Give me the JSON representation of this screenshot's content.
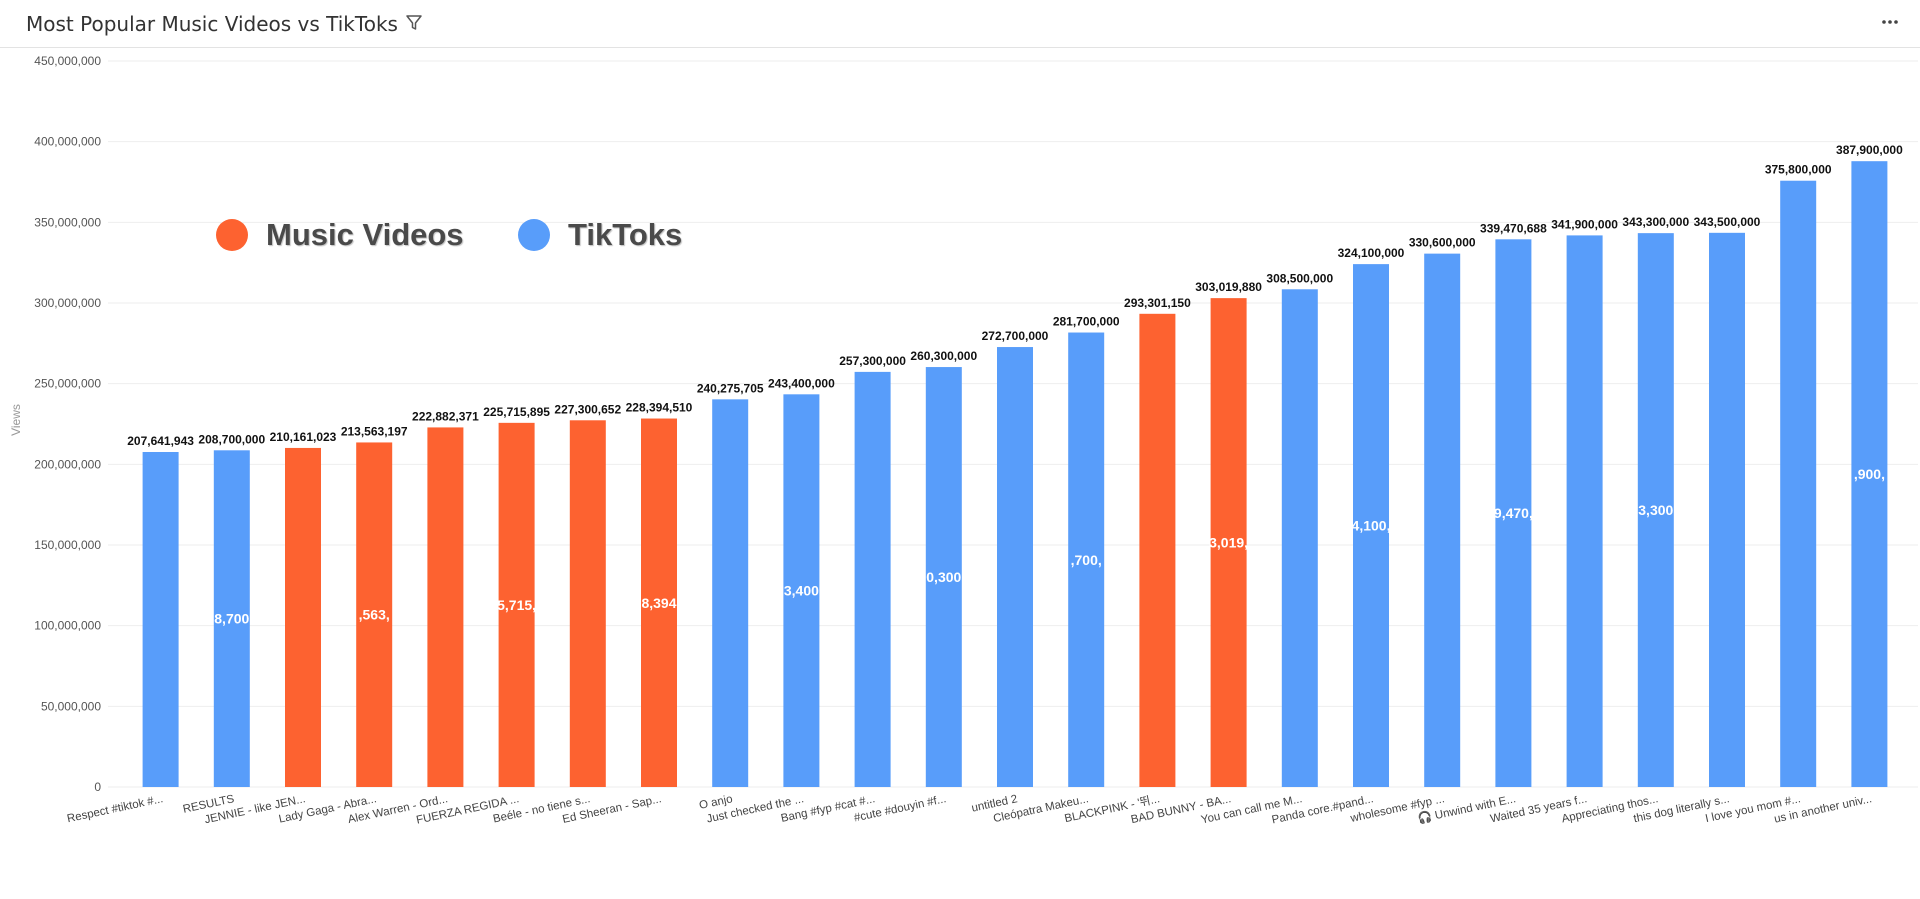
{
  "header": {
    "title": "Most Popular Music Videos vs TikToks",
    "filter_icon": "filter-icon",
    "more_icon": "more-horizontal-icon"
  },
  "legend": {
    "items": [
      {
        "label": "Music Videos",
        "color": "#fd6230"
      },
      {
        "label": "TikToks",
        "color": "#589dfa"
      }
    ]
  },
  "chart_data": {
    "type": "bar",
    "title": "Most Popular Music Videos vs TikToks",
    "xlabel": "",
    "ylabel": "Views",
    "ylim": [
      0,
      450000000
    ],
    "yticks": [
      "0",
      "50,000,000",
      "100,000,000",
      "150,000,000",
      "200,000,000",
      "250,000,000",
      "300,000,000",
      "350,000,000",
      "400,000,000",
      "450,000,000"
    ],
    "grid": true,
    "legend_position": "top-left",
    "colors": {
      "Music Videos": "#fd6230",
      "TikToks": "#589dfa"
    },
    "categories": [
      "Respect #tiktok #...",
      "RESULTS",
      "JENNIE - like JEN...",
      "Lady Gaga - Abra...",
      "Alex Warren - Ord...",
      "FUERZA REGIDA ...",
      "Beéle - no tiene s...",
      "Ed Sheeran - Sap...",
      "O anjo",
      "Just checked the ...",
      "Bang #fyp #cat #...",
      "#cute #douyin #f...",
      "untitled 2",
      "Cleópatra Makeu...",
      "BLACKPINK - '뛰...",
      "BAD BUNNY - BA...",
      "You can call me M...",
      "Panda core.#pand...",
      "wholesome #fyp ...",
      "🎧 Unwind with E...",
      "Waited 35 years f...",
      "Appreciating thos...",
      "this dog literally s...",
      "I love you mom #...",
      "us in another univ..."
    ],
    "values": [
      207641943,
      208700000,
      210161023,
      213563197,
      222882371,
      225715895,
      227300652,
      228394510,
      240275705,
      243400000,
      257300000,
      260300000,
      272700000,
      281700000,
      293301150,
      303019880,
      308500000,
      324100000,
      330600000,
      339470688,
      341900000,
      343300000,
      343500000,
      375800000,
      387900000
    ],
    "value_labels": [
      "207,641,943",
      "208,700,000",
      "210,161,023",
      "213,563,197",
      "222,882,371",
      "225,715,895",
      "227,300,652",
      "228,394,510",
      "240,275,705",
      "243,400,000",
      "257,300,000",
      "260,300,000",
      "272,700,000",
      "281,700,000",
      "293,301,150",
      "303,019,880",
      "308,500,000",
      "324,100,000",
      "330,600,000",
      "339,470,688",
      "341,900,000",
      "343,300,000",
      "343,500,000",
      "375,800,000",
      "387,900,000"
    ],
    "series_type": [
      "TikToks",
      "TikToks",
      "Music Videos",
      "Music Videos",
      "Music Videos",
      "Music Videos",
      "Music Videos",
      "Music Videos",
      "TikToks",
      "TikToks",
      "TikToks",
      "TikToks",
      "TikToks",
      "TikToks",
      "Music Videos",
      "Music Videos",
      "TikToks",
      "TikToks",
      "TikToks",
      "TikToks",
      "TikToks",
      "TikToks",
      "TikToks",
      "TikToks",
      "TikToks"
    ],
    "inner_labels": [
      {
        "index": 1,
        "text": "8,700"
      },
      {
        "index": 3,
        "text": ",563,"
      },
      {
        "index": 5,
        "text": "5,715,"
      },
      {
        "index": 7,
        "text": "8,394"
      },
      {
        "index": 9,
        "text": "3,400"
      },
      {
        "index": 11,
        "text": "0,300"
      },
      {
        "index": 13,
        "text": ",700,"
      },
      {
        "index": 15,
        "text": "3,019,"
      },
      {
        "index": 17,
        "text": "4,100,"
      },
      {
        "index": 19,
        "text": "9,470,"
      },
      {
        "index": 21,
        "text": "3,300"
      },
      {
        "index": 24,
        "text": ",900,"
      }
    ]
  }
}
